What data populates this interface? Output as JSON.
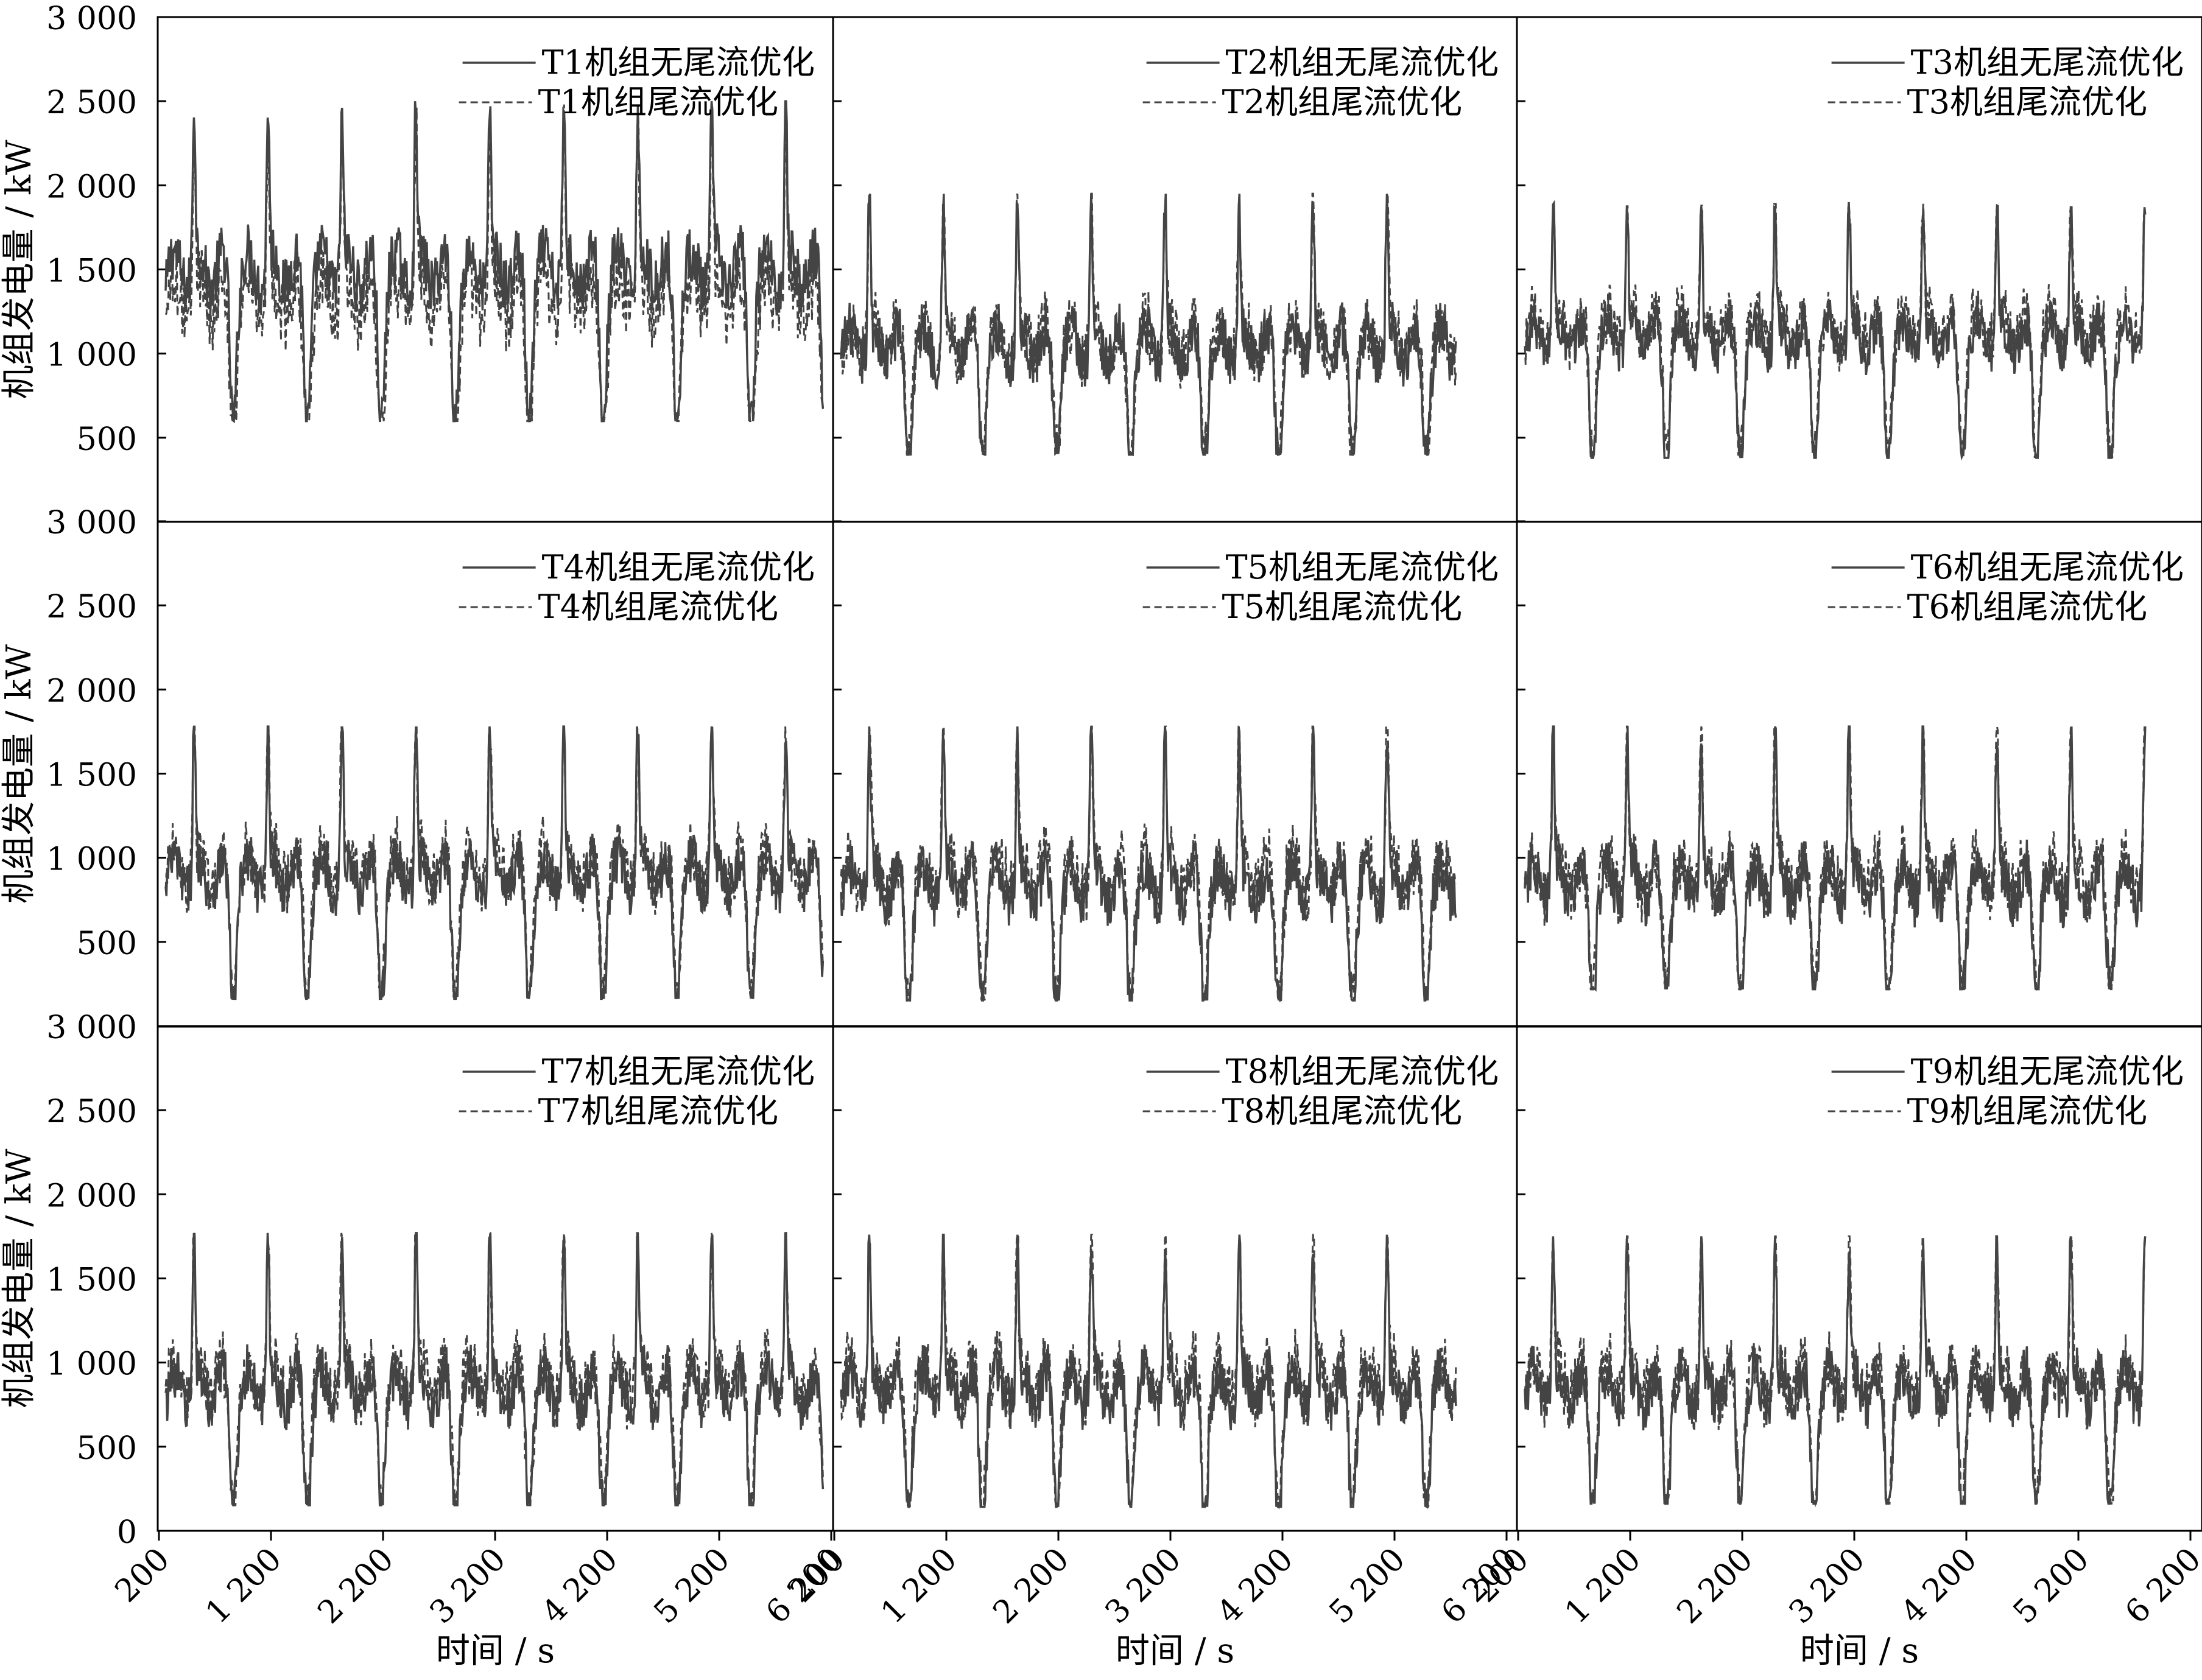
{
  "chart_data": {
    "type": "line",
    "layout": "3x3 panel grid, shared axes",
    "xlabel": "时间 / s",
    "ylabel": "机组发电量 / kW",
    "xlim": [
      200,
      6200
    ],
    "ylim": [
      0,
      3000
    ],
    "x_ticks": [
      200,
      1200,
      2200,
      3200,
      4200,
      5200,
      6200
    ],
    "x_tick_labels": [
      "200",
      "1 200",
      "2 200",
      "3 200",
      "4 200",
      "5 200",
      "6 200"
    ],
    "y_ticks": [
      0,
      500,
      1000,
      1500,
      2000,
      2500,
      3000
    ],
    "y_tick_labels": [
      "0",
      "500",
      "1 000",
      "1 500",
      "2 000",
      "2 500",
      "3 000"
    ],
    "legend_position": "top-right",
    "line_color": "#444444",
    "panels": [
      {
        "id": "T1",
        "legend": [
          "T1机组无尾流优化",
          "T1机组尾流优化"
        ],
        "x_end": 6130,
        "peaks": [
          2480,
          2480,
          2460,
          2500,
          2470,
          2480,
          2470,
          2500
        ],
        "trough": 630,
        "mid": 1500,
        "opt_offset": -160
      },
      {
        "id": "T2",
        "legend": [
          "T2机组无尾流优化",
          "T2机组尾流优化"
        ],
        "x_end": 5750,
        "peaks": [
          1950,
          1950,
          1950,
          1950,
          1950,
          1950,
          1950,
          1950
        ],
        "trough": 420,
        "mid": 1050,
        "opt_offset": 30
      },
      {
        "id": "T3",
        "legend": [
          "T3机组无尾流优化",
          "T3机组尾流优化"
        ],
        "x_end": 5800,
        "peaks": [
          1900,
          1880,
          1880,
          1890,
          1900,
          1890,
          1880,
          1870
        ],
        "trough": 400,
        "mid": 1100,
        "opt_offset": 60
      },
      {
        "id": "T4",
        "legend": [
          "T4机组无尾流优化",
          "T4机组尾流优化"
        ],
        "x_end": 6130,
        "peaks": [
          1780,
          1780,
          1780,
          1780,
          1780,
          1780,
          1780,
          1780
        ],
        "trough": 170,
        "mid": 900,
        "opt_offset": 50
      },
      {
        "id": "T5",
        "legend": [
          "T5机组无尾流优化",
          "T5机组尾流优化"
        ],
        "x_end": 5750,
        "peaks": [
          1780,
          1780,
          1780,
          1780,
          1780,
          1780,
          1780,
          1780
        ],
        "trough": 160,
        "mid": 850,
        "opt_offset": 50
      },
      {
        "id": "T6",
        "legend": [
          "T6机组无尾流优化",
          "T6机组尾流优化"
        ],
        "x_end": 5800,
        "peaks": [
          1780,
          1780,
          1780,
          1780,
          1780,
          1780,
          1780,
          1780
        ],
        "trough": 230,
        "mid": 850,
        "opt_offset": 50
      },
      {
        "id": "T7",
        "legend": [
          "T7机组无尾流优化",
          "T7机组尾流优化"
        ],
        "x_end": 6130,
        "peaks": [
          1770,
          1770,
          1770,
          1770,
          1770,
          1770,
          1770,
          1770
        ],
        "trough": 160,
        "mid": 850,
        "opt_offset": 50
      },
      {
        "id": "T8",
        "legend": [
          "T8机组无尾流优化",
          "T8机组尾流优化"
        ],
        "x_end": 5750,
        "peaks": [
          1760,
          1760,
          1760,
          1760,
          1760,
          1760,
          1760,
          1760
        ],
        "trough": 150,
        "mid": 850,
        "opt_offset": 50
      },
      {
        "id": "T9",
        "legend": [
          "T9机组无尾流优化",
          "T9机组尾流优化"
        ],
        "x_end": 5800,
        "peaks": [
          1750,
          1750,
          1750,
          1750,
          1750,
          1750,
          1750,
          1750
        ],
        "trough": 170,
        "mid": 850,
        "opt_offset": 40
      }
    ]
  }
}
